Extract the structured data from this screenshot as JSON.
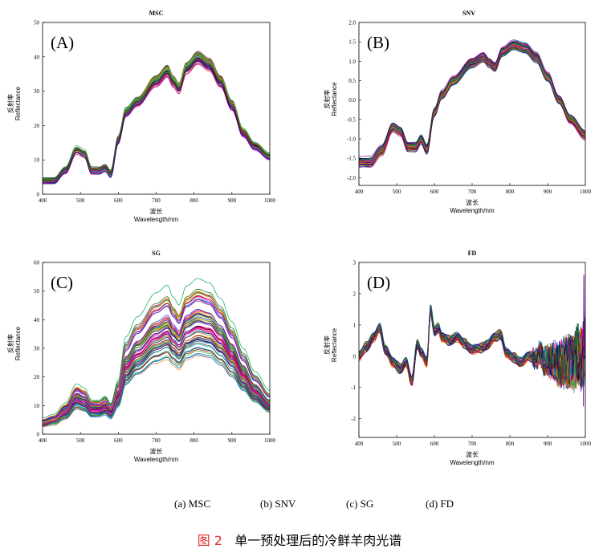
{
  "chart_data": [
    {
      "type": "line",
      "id": "A",
      "title": "MSC",
      "panel_label": "(A)",
      "xlabel_cn": "波长",
      "xlabel": "Wavelength/nm",
      "ylabel_cn": "反射率",
      "ylabel": "Reflectance",
      "xlim": [
        400,
        1000
      ],
      "ylim": [
        0,
        50
      ],
      "xticks": [
        400,
        500,
        600,
        700,
        800,
        900,
        1000
      ],
      "yticks": [
        0,
        10,
        20,
        30,
        40,
        50
      ],
      "series_summary": {
        "x": [
          400,
          430,
          460,
          490,
          510,
          530,
          550,
          565,
          580,
          600,
          620,
          650,
          700,
          730,
          745,
          760,
          780,
          810,
          840,
          870,
          900,
          930,
          960,
          1000
        ],
        "mean": [
          4,
          4,
          7,
          13,
          12,
          7,
          7,
          7.8,
          6,
          16,
          24,
          27,
          33,
          36,
          33,
          31,
          37,
          40,
          38,
          33,
          26,
          18,
          14,
          11
        ],
        "spread": 1.5
      }
    },
    {
      "type": "line",
      "id": "B",
      "title": "SNV",
      "panel_label": "(B)",
      "xlabel_cn": "波长",
      "xlabel": "Wavelength/nm",
      "ylabel_cn": "反射率",
      "ylabel": "Reflectance",
      "xlim": [
        400,
        1000
      ],
      "ylim": [
        -2.2,
        2.0
      ],
      "xticks": [
        400,
        500,
        600,
        700,
        800,
        900,
        1000
      ],
      "yticks": [
        -2.0,
        -1.5,
        -1.0,
        -0.5,
        0.0,
        0.5,
        1.0,
        1.5,
        2.0
      ],
      "series_summary": {
        "x": [
          400,
          430,
          460,
          490,
          510,
          530,
          550,
          565,
          580,
          600,
          620,
          650,
          700,
          730,
          745,
          760,
          780,
          810,
          840,
          870,
          900,
          930,
          960,
          1000
        ],
        "mean": [
          -1.6,
          -1.6,
          -1.3,
          -0.7,
          -0.8,
          -1.2,
          -1.2,
          -1.0,
          -1.25,
          -0.3,
          0.15,
          0.5,
          0.95,
          1.1,
          0.95,
          0.85,
          1.25,
          1.42,
          1.35,
          1.1,
          0.6,
          0.0,
          -0.5,
          -0.9
        ],
        "spread": 0.15
      }
    },
    {
      "type": "line",
      "id": "C",
      "title": "SG",
      "panel_label": "(C)",
      "xlabel_cn": "波长",
      "xlabel": "Wavelength/nm",
      "ylabel_cn": "反射率",
      "ylabel": "Reflectance",
      "xlim": [
        400,
        1000
      ],
      "ylim": [
        0,
        60
      ],
      "xticks": [
        400,
        500,
        600,
        700,
        800,
        900,
        1000
      ],
      "yticks": [
        0,
        10,
        20,
        30,
        40,
        50,
        60
      ],
      "series_summary": {
        "x": [
          400,
          430,
          460,
          490,
          510,
          530,
          550,
          565,
          580,
          600,
          620,
          650,
          700,
          730,
          745,
          760,
          780,
          810,
          840,
          870,
          900,
          930,
          960,
          1000
        ],
        "mean": [
          4,
          5,
          8,
          13,
          12,
          9,
          9,
          10,
          8,
          14,
          25,
          30,
          36,
          38,
          35,
          33,
          38,
          40,
          39,
          35,
          29,
          22,
          16,
          11
        ],
        "spread": 6
      }
    },
    {
      "type": "line",
      "id": "D",
      "title": "FD",
      "panel_label": "(D)",
      "xlabel_cn": "波长",
      "xlabel": "Wavelength/nm",
      "ylabel_cn": "反射率",
      "ylabel": "Reflectance",
      "xlim": [
        400,
        1000
      ],
      "ylim": [
        -2.6,
        3.0
      ],
      "xticks": [
        400,
        500,
        600,
        700,
        800,
        900,
        1000
      ],
      "yticks": [
        -2,
        -1,
        0,
        1,
        2,
        3
      ],
      "series_summary": {
        "x": [
          400,
          420,
          440,
          455,
          470,
          490,
          510,
          525,
          540,
          555,
          565,
          580,
          590,
          600,
          610,
          620,
          640,
          660,
          680,
          700,
          720,
          740,
          760,
          775,
          790,
          810,
          830,
          850,
          870,
          880,
          890,
          910,
          930,
          950,
          970,
          980,
          990,
          1000
        ],
        "mean": [
          0,
          0.3,
          0.6,
          0.9,
          0.2,
          -0.2,
          -0.4,
          -0.2,
          -0.8,
          0.4,
          0.1,
          -0.2,
          1.5,
          0.8,
          0.9,
          0.6,
          0.5,
          0.6,
          0.4,
          0.2,
          0.25,
          0.35,
          0.6,
          0.7,
          0.1,
          -0.05,
          -0.2,
          0,
          -0.1,
          0.1,
          -0.2,
          -0.1,
          -0.3,
          -0.2,
          -0.2,
          0.1,
          -0.1,
          0.3
        ],
        "spread": 0.2
      }
    }
  ],
  "subcaptions": [
    "(a) MSC",
    "(b) SNV",
    "(c) SG",
    "(d) FD"
  ],
  "figure_caption": {
    "label": "图 2",
    "text": "单一预处理后的冷鲜羊肉光谱"
  }
}
